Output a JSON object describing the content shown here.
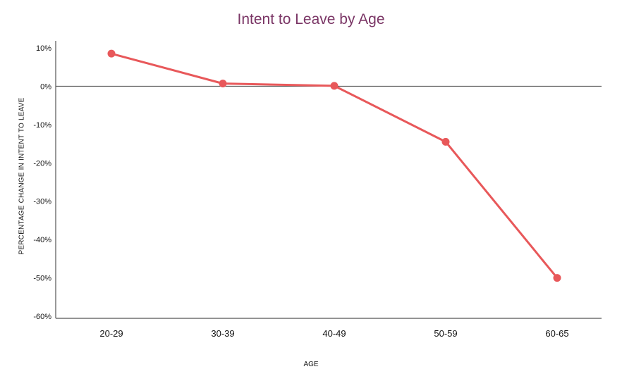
{
  "chart_data": {
    "type": "line",
    "title": "Intent to Leave by Age",
    "xlabel": "AGE",
    "ylabel": "PERCENTAGE CHANGE IN INTENT TO LEAVE",
    "categories": [
      "20-29",
      "30-39",
      "40-49",
      "50-59",
      "60-65"
    ],
    "values": [
      8.5,
      0.7,
      0.1,
      -14.5,
      -50
    ],
    "ylim": [
      -60,
      10
    ],
    "yticks": [
      10,
      0,
      -10,
      -20,
      -30,
      -40,
      -50,
      -60
    ],
    "ytick_labels": [
      "10%",
      "0%",
      "-10%",
      "-20%",
      "-30%",
      "-40%",
      "-50%",
      "-60%"
    ],
    "grid": false,
    "zero_line": true,
    "colors": {
      "line": "#e8585a",
      "title": "#7a3565",
      "axis": "#555555"
    }
  }
}
